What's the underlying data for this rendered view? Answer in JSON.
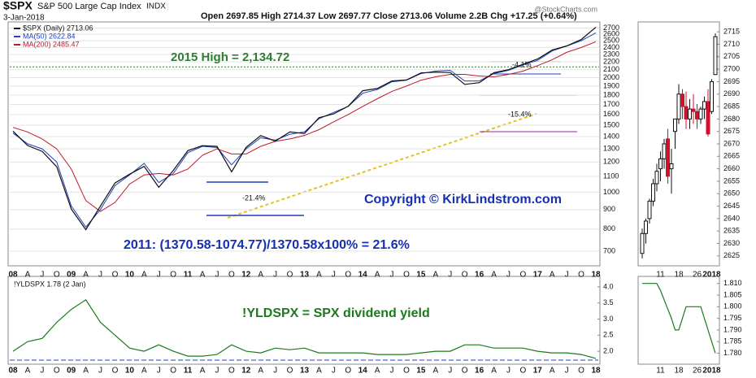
{
  "header": {
    "symbol": "$SPX",
    "name": "S&P 500 Large Cap Index",
    "exchange": "INDX",
    "date": "3-Jan-2018",
    "quote": "Open 2697.85 High 2714.37 Low 2697.77 Close 2713.06 Volume 2.2B Chg +17.25 (+0.64%)",
    "source": "@StockCharts.com"
  },
  "chart_data": [
    {
      "type": "line",
      "log_scale": true,
      "grid": true,
      "categories": [
        "08",
        "A",
        "J",
        "O",
        "09",
        "A",
        "J",
        "O",
        "10",
        "A",
        "J",
        "O",
        "11",
        "A",
        "J",
        "O",
        "12",
        "A",
        "J",
        "O",
        "13",
        "A",
        "J",
        "O",
        "14",
        "A",
        "J",
        "O",
        "15",
        "A",
        "J",
        "O",
        "16",
        "A",
        "J",
        "O",
        "17",
        "A",
        "J",
        "O",
        "18"
      ],
      "series": [
        {
          "name": "$SPX (Daily) 2713.06",
          "color": "#111111",
          "values": [
            1447,
            1326,
            1280,
            1166,
            903,
            797,
            919,
            1057,
            1115,
            1169,
            1030,
            1141,
            1286,
            1325,
            1320,
            1131,
            1312,
            1408,
            1362,
            1440,
            1426,
            1569,
            1606,
            1682,
            1848,
            1872,
            1960,
            1972,
            2058,
            2067,
            2063,
            1920,
            1940,
            2060,
            2099,
            2168,
            2238,
            2363,
            2423,
            2519,
            2713
          ]
        },
        {
          "name": "MA(50) 2622.84",
          "color": "#1f3fbf",
          "values": [
            1430,
            1340,
            1300,
            1200,
            920,
            810,
            900,
            1040,
            1110,
            1190,
            1060,
            1120,
            1270,
            1320,
            1310,
            1180,
            1300,
            1390,
            1370,
            1420,
            1440,
            1560,
            1620,
            1680,
            1820,
            1860,
            1950,
            1970,
            2050,
            2080,
            2090,
            1960,
            1960,
            2050,
            2090,
            2160,
            2220,
            2350,
            2420,
            2500,
            2622.84
          ]
        },
        {
          "name": "MA(200) 2485.47",
          "color": "#c0182b",
          "values": [
            1480,
            1440,
            1380,
            1300,
            1150,
            950,
            890,
            940,
            1050,
            1110,
            1120,
            1110,
            1150,
            1250,
            1300,
            1260,
            1260,
            1320,
            1360,
            1380,
            1410,
            1460,
            1530,
            1600,
            1680,
            1760,
            1840,
            1900,
            1970,
            2010,
            2040,
            2040,
            2020,
            2010,
            2040,
            2080,
            2150,
            2230,
            2330,
            2400,
            2485.47
          ]
        }
      ],
      "ylim": [
        650,
        2760
      ],
      "yticks": [
        700,
        800,
        900,
        1000,
        1100,
        1200,
        1300,
        1400,
        1500,
        1600,
        1700,
        1800,
        1900,
        2000,
        2100,
        2200,
        2300,
        2400,
        2500,
        2600,
        2700
      ],
      "hline": {
        "value": 2134.72,
        "label": "2015 High = 2,134.72",
        "color": "#2e7d32"
      },
      "annotations": [
        "Copyright © KirkLindstrom.com",
        "2011: (1370.58-1074.77)/1370.58x100% = 21.6%",
        "-21.4%",
        "-4.1%",
        "-15.4%"
      ]
    },
    {
      "type": "line",
      "title": "!YLDSPX 1.78 (2 Jan)",
      "annotation": "!YLDSPX = SPX dividend yield",
      "color": "#1b7a1b",
      "values": [
        2.0,
        2.3,
        2.4,
        2.9,
        3.3,
        3.6,
        2.9,
        2.5,
        2.1,
        2.0,
        2.2,
        2.0,
        1.85,
        1.85,
        1.9,
        2.2,
        2.0,
        1.95,
        2.1,
        2.05,
        2.1,
        1.95,
        1.95,
        1.95,
        1.95,
        1.9,
        1.9,
        1.9,
        1.95,
        2.0,
        2.0,
        2.2,
        2.2,
        2.1,
        2.1,
        2.1,
        2.0,
        1.95,
        1.95,
        1.9,
        1.78
      ],
      "ylim": [
        1.65,
        4.25
      ],
      "yticks": [
        {
          "value": 2,
          "label": "2.0"
        },
        2.5,
        {
          "value": 3,
          "label": "3.0"
        },
        3.5,
        {
          "value": 4,
          "label": "4.0"
        }
      ]
    },
    {
      "type": "candlestick",
      "categories": [
        null,
        null,
        null,
        null,
        null,
        "11",
        null,
        null,
        null,
        null,
        "18",
        null,
        null,
        null,
        null,
        "26",
        null,
        null,
        null,
        "2018",
        null
      ],
      "open": [
        2626,
        2634,
        2640,
        2647,
        2654,
        2660,
        2664,
        2672,
        2660,
        2675,
        2680,
        2690,
        2685,
        2680,
        2684,
        2683,
        2680,
        2684,
        2687,
        2683,
        2697.85
      ],
      "high": [
        2636,
        2640,
        2648,
        2656,
        2662,
        2667,
        2672,
        2676,
        2668,
        2680,
        2694,
        2692,
        2691,
        2688,
        2690,
        2686,
        2685,
        2689,
        2692,
        2696,
        2714.37
      ],
      "low": [
        2624,
        2630,
        2638,
        2645,
        2651,
        2655,
        2660,
        2654,
        2650,
        2668,
        2678,
        2680,
        2676,
        2676,
        2678,
        2676,
        2678,
        2680,
        2673,
        2682,
        2697.77
      ],
      "close": [
        2634,
        2639,
        2647,
        2654,
        2659,
        2664,
        2670,
        2657,
        2662,
        2680,
        2690,
        2685,
        2680,
        2684,
        2683,
        2680,
        2684,
        2687,
        2674,
        2695,
        2713.06
      ],
      "up_color": "#111111",
      "down_color": "#d0102c",
      "ylim": [
        2622,
        2718
      ],
      "yticks": [
        2625,
        2630,
        2635,
        2640,
        2645,
        2650,
        2655,
        2660,
        2665,
        2670,
        2675,
        2680,
        2685,
        2690,
        2695,
        2700,
        2705,
        2710,
        2715
      ]
    },
    {
      "type": "line",
      "color": "#1b7a1b",
      "values": [
        1.81,
        1.81,
        1.81,
        1.81,
        1.81,
        1.807,
        1.803,
        1.799,
        1.795,
        1.79,
        1.79,
        1.795,
        1.8,
        1.8,
        1.8,
        1.8,
        1.8,
        1.795,
        1.79,
        1.785,
        1.78
      ],
      "ylim": [
        1.776,
        1.812
      ],
      "yticks": [
        {
          "value": 1.78,
          "label": "1.780"
        },
        {
          "value": 1.785,
          "label": "1.785"
        },
        {
          "value": 1.79,
          "label": "1.790"
        },
        {
          "value": 1.795,
          "label": "1.795"
        },
        {
          "value": 1.8,
          "label": "1.800"
        },
        {
          "value": 1.805,
          "label": "1.805"
        },
        {
          "value": 1.81,
          "label": "1.810"
        }
      ]
    }
  ]
}
